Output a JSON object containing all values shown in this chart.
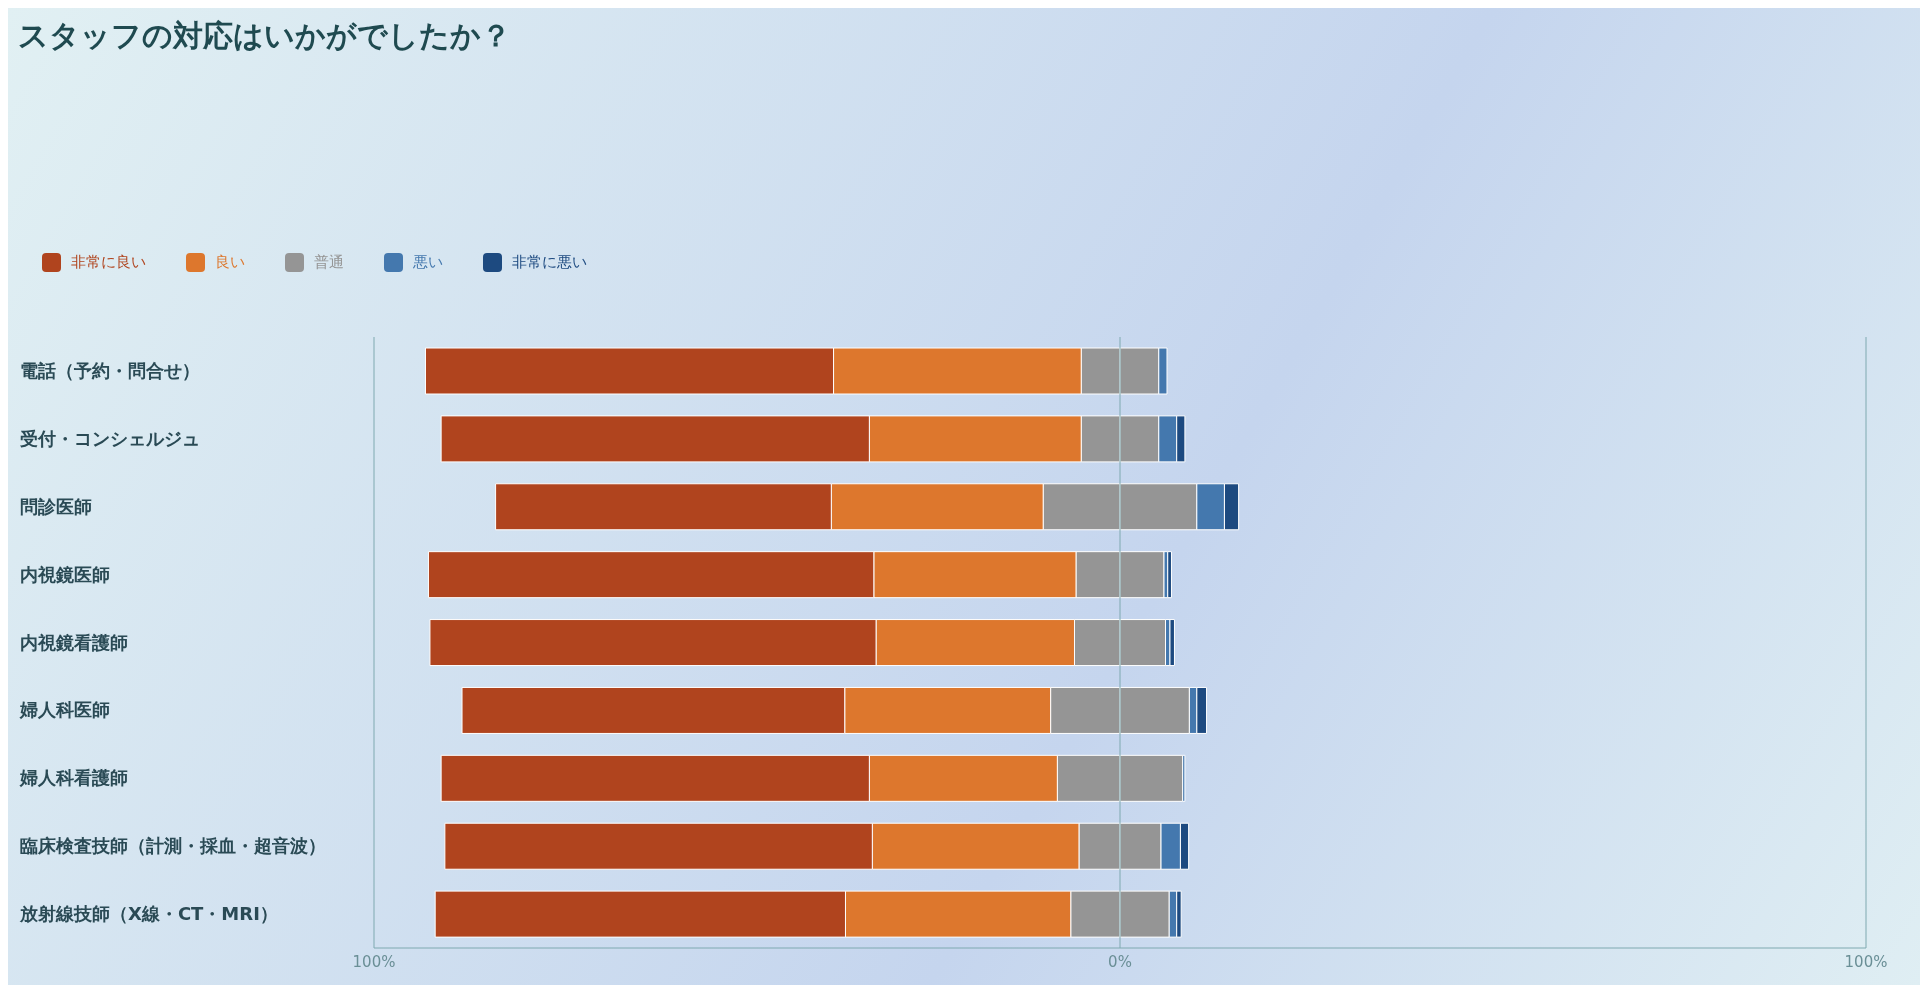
{
  "chart_data": {
    "type": "bar",
    "title": "スタッフの対応はいかがでしたか？",
    "orientation": "horizontal",
    "stacked": true,
    "categories": [
      "電話（予約・問合せ）",
      "受付・コンシェルジュ",
      "問診医師",
      "内視鏡医師",
      "内視鏡看護師",
      "婦人科医師",
      "婦人科看護師",
      "臨床検査技師（計測・採血・超音波）",
      "放射線技師（X線・CT・MRI）"
    ],
    "series": [
      {
        "name": "普通",
        "color": "#959595",
        "values": [
          -5.2,
          -5.2,
          -10.3,
          -5.9,
          -6.1,
          -9.3,
          -8.4,
          -5.5,
          -6.6
        ]
      },
      {
        "name": "良い",
        "color": "#dd772d",
        "values": [
          -33.2,
          -28.4,
          -28.4,
          -27.1,
          -26.6,
          -27.6,
          -25.2,
          -27.7,
          -30.2
        ]
      },
      {
        "name": "非常に良い",
        "color": "#b0441e",
        "values": [
          -54.7,
          -57.4,
          -45.0,
          -59.7,
          -59.8,
          -51.3,
          -57.4,
          -57.3,
          -55.0
        ]
      },
      {
        "color": "#959595",
        "values": [
          5.2,
          5.2,
          10.3,
          5.9,
          6.1,
          9.3,
          8.4,
          5.5,
          6.6
        ]
      },
      {
        "name": "悪い",
        "color": "#4478ae",
        "values": [
          1.1,
          2.4,
          3.7,
          0.5,
          0.6,
          1.0,
          0.3,
          2.6,
          1.0
        ]
      },
      {
        "name": "非常に悪い",
        "color": "#1d4a80",
        "values": [
          null,
          1.1,
          1.9,
          0.5,
          0.6,
          1.3,
          null,
          1.1,
          0.6
        ]
      }
    ],
    "xlim": [
      -100,
      100
    ],
    "xticks": [
      {
        "value": -100,
        "label": "100%"
      },
      {
        "value": 0,
        "label": "0%"
      },
      {
        "value": 100,
        "label": "100%"
      }
    ],
    "ref_lines": [
      {
        "axis": "x",
        "value": 0,
        "color": "#7fa9b0"
      }
    ],
    "legend": "top left"
  }
}
